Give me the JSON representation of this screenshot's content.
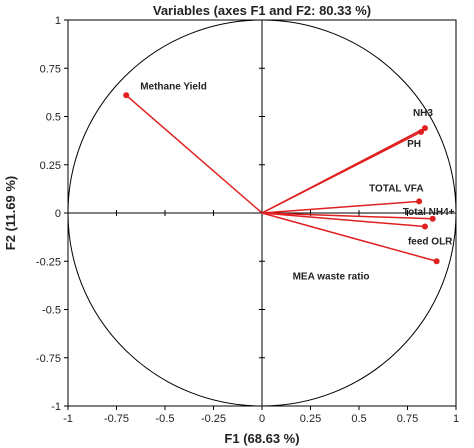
{
  "chart_data": {
    "type": "scatter",
    "title": "Variables (axes F1 and F2: 80.33 %)",
    "xlabel": "F1 (68.63 %)",
    "ylabel": "F2 (11.69 %)",
    "xlim": [
      -1,
      1
    ],
    "ylim": [
      -1,
      1
    ],
    "xticks": [
      "-1",
      "-0.75",
      "-0.5",
      "-0.25",
      "0",
      "0.25",
      "0.5",
      "0.75",
      "1"
    ],
    "yticks": [
      "-1",
      "-0.75",
      "-0.5",
      "-0.25",
      "0",
      "0.25",
      "0.5",
      "0.75",
      "1"
    ],
    "xtick_values": [
      -1,
      -0.75,
      -0.5,
      -0.25,
      0,
      0.25,
      0.5,
      0.75,
      1
    ],
    "ytick_values": [
      -1,
      -0.75,
      -0.5,
      -0.25,
      0,
      0.25,
      0.5,
      0.75,
      1
    ],
    "grid": false,
    "unit_circle": true,
    "vector_color": "#e02020",
    "points": [
      {
        "label": "Methane Yield",
        "x": -0.7,
        "y": 0.61
      },
      {
        "label": "NH3",
        "x": 0.84,
        "y": 0.44
      },
      {
        "label": "PH",
        "x": 0.82,
        "y": 0.42
      },
      {
        "label": "TOTAL VFA",
        "x": 0.81,
        "y": 0.06
      },
      {
        "label": "Total NH4+",
        "x": 0.88,
        "y": -0.03
      },
      {
        "label": "feed OLR",
        "x": 0.84,
        "y": -0.07
      },
      {
        "label": "MEA waste ratio",
        "x": 0.9,
        "y": -0.25
      }
    ]
  }
}
